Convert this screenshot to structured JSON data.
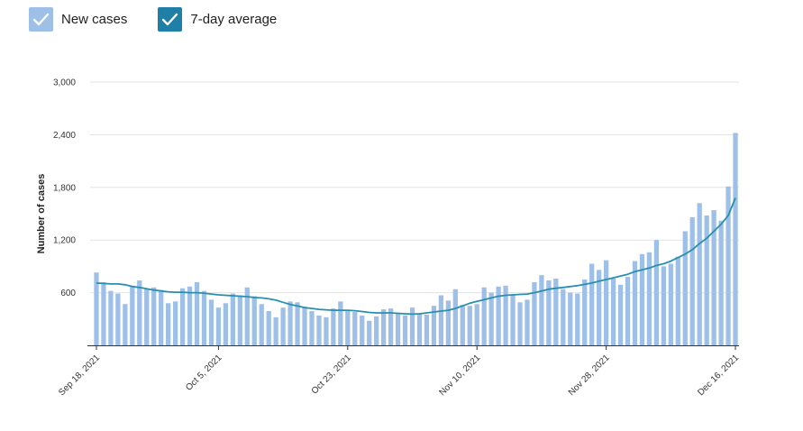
{
  "legend": {
    "items": [
      {
        "label": "New cases",
        "color": "#9dbfe8",
        "icon": "checkmark-icon"
      },
      {
        "label": "7-day average",
        "color": "#1f7fa6",
        "icon": "checkmark-icon"
      }
    ]
  },
  "chart_data": {
    "type": "bar",
    "title": "",
    "xlabel": "",
    "ylabel": "Number of cases",
    "ylim": [
      0,
      3000
    ],
    "yticks": [
      600,
      1200,
      1800,
      2400,
      3000
    ],
    "ytick_labels": [
      "600",
      "1,200",
      "1,800",
      "2,400",
      "3,000"
    ],
    "grid": true,
    "x_tick_labels": [
      {
        "index": 0,
        "label": "Sep 18, 2021"
      },
      {
        "index": 17,
        "label": "Oct 5, 2021"
      },
      {
        "index": 35,
        "label": "Oct 23, 2021"
      },
      {
        "index": 53,
        "label": "Nov 10, 2021"
      },
      {
        "index": 71,
        "label": "Nov 28, 2021"
      },
      {
        "index": 89,
        "label": "Dec 16, 2021"
      }
    ],
    "series": [
      {
        "name": "New cases",
        "type": "bar",
        "color": "#9dbfe8",
        "values": [
          830,
          720,
          620,
          590,
          470,
          680,
          740,
          640,
          660,
          630,
          480,
          500,
          650,
          670,
          720,
          620,
          520,
          430,
          480,
          590,
          570,
          660,
          560,
          470,
          390,
          320,
          430,
          500,
          490,
          440,
          390,
          340,
          320,
          420,
          500,
          390,
          380,
          340,
          280,
          330,
          410,
          420,
          360,
          340,
          430,
          360,
          350,
          450,
          570,
          510,
          640,
          460,
          450,
          470,
          660,
          600,
          670,
          680,
          580,
          490,
          520,
          720,
          800,
          740,
          760,
          640,
          600,
          590,
          750,
          930,
          860,
          970,
          760,
          690,
          780,
          960,
          1040,
          1060,
          1200,
          900,
          930,
          1010,
          1300,
          1460,
          1620,
          1480,
          1540,
          1420,
          1810,
          2420
        ]
      },
      {
        "name": "7-day average",
        "type": "line",
        "color": "#2a8fae",
        "values": [
          710,
          705,
          700,
          700,
          690,
          670,
          660,
          645,
          630,
          620,
          610,
          605,
          605,
          600,
          600,
          595,
          585,
          575,
          570,
          565,
          560,
          555,
          545,
          540,
          530,
          515,
          490,
          465,
          450,
          430,
          420,
          410,
          405,
          400,
          400,
          400,
          395,
          385,
          375,
          370,
          370,
          370,
          365,
          360,
          355,
          360,
          370,
          380,
          390,
          400,
          420,
          450,
          480,
          500,
          520,
          540,
          560,
          570,
          575,
          580,
          585,
          600,
          620,
          640,
          650,
          660,
          670,
          680,
          695,
          710,
          730,
          750,
          770,
          790,
          810,
          840,
          860,
          880,
          910,
          930,
          960,
          1000,
          1040,
          1090,
          1160,
          1220,
          1300,
          1380,
          1480,
          1680
        ]
      }
    ]
  }
}
